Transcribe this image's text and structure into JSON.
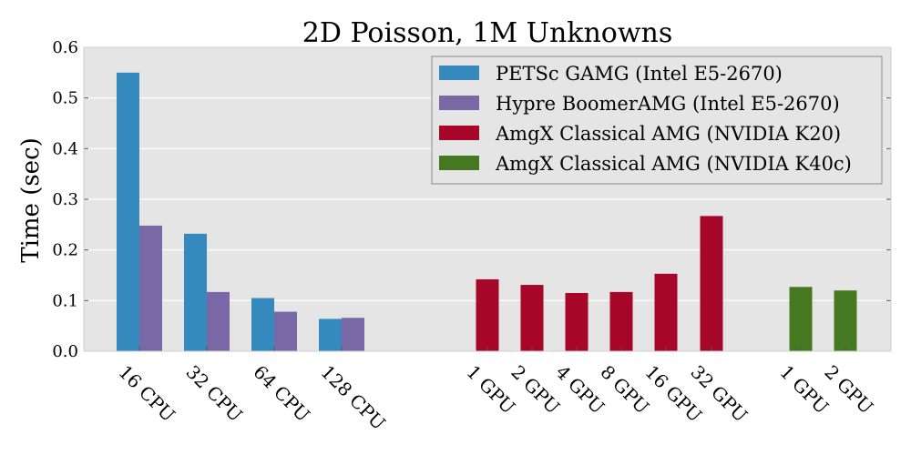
{
  "chart_data": {
    "type": "bar",
    "title": "2D Poisson, 1M Unknowns",
    "xlabel": "",
    "ylabel": "Time (sec)",
    "ylim": [
      0,
      0.6
    ],
    "yticks": [
      "0.0",
      "0.1",
      "0.2",
      "0.3",
      "0.4",
      "0.5",
      "0.6"
    ],
    "grid": true,
    "legend_position": "top-right",
    "categories": [
      "16 CPU",
      "32 CPU",
      "64 CPU",
      "128 CPU",
      "1 GPU",
      "2 GPU",
      "4 GPU",
      "8 GPU",
      "16 GPU",
      "32 GPU",
      "1 GPU",
      "2 GPU"
    ],
    "series": [
      {
        "name": "PETSc GAMG (Intel E5-2670)",
        "color": "#348abd",
        "values": [
          0.55,
          0.232,
          0.105,
          0.064,
          null,
          null,
          null,
          null,
          null,
          null,
          null,
          null
        ]
      },
      {
        "name": "Hypre BoomerAMG (Intel E5-2670)",
        "color": "#7a68a6",
        "values": [
          0.248,
          0.117,
          0.078,
          0.066,
          null,
          null,
          null,
          null,
          null,
          null,
          null,
          null
        ]
      },
      {
        "name": "AmgX Classical AMG (NVIDIA K20)",
        "color": "#a60628",
        "values": [
          null,
          null,
          null,
          null,
          0.142,
          0.131,
          0.115,
          0.117,
          0.153,
          0.267,
          null,
          null
        ]
      },
      {
        "name": "AmgX Classical AMG (NVIDIA K40c)",
        "color": "#467821",
        "values": [
          null,
          null,
          null,
          null,
          null,
          null,
          null,
          null,
          null,
          null,
          0.127,
          0.12
        ]
      }
    ]
  }
}
